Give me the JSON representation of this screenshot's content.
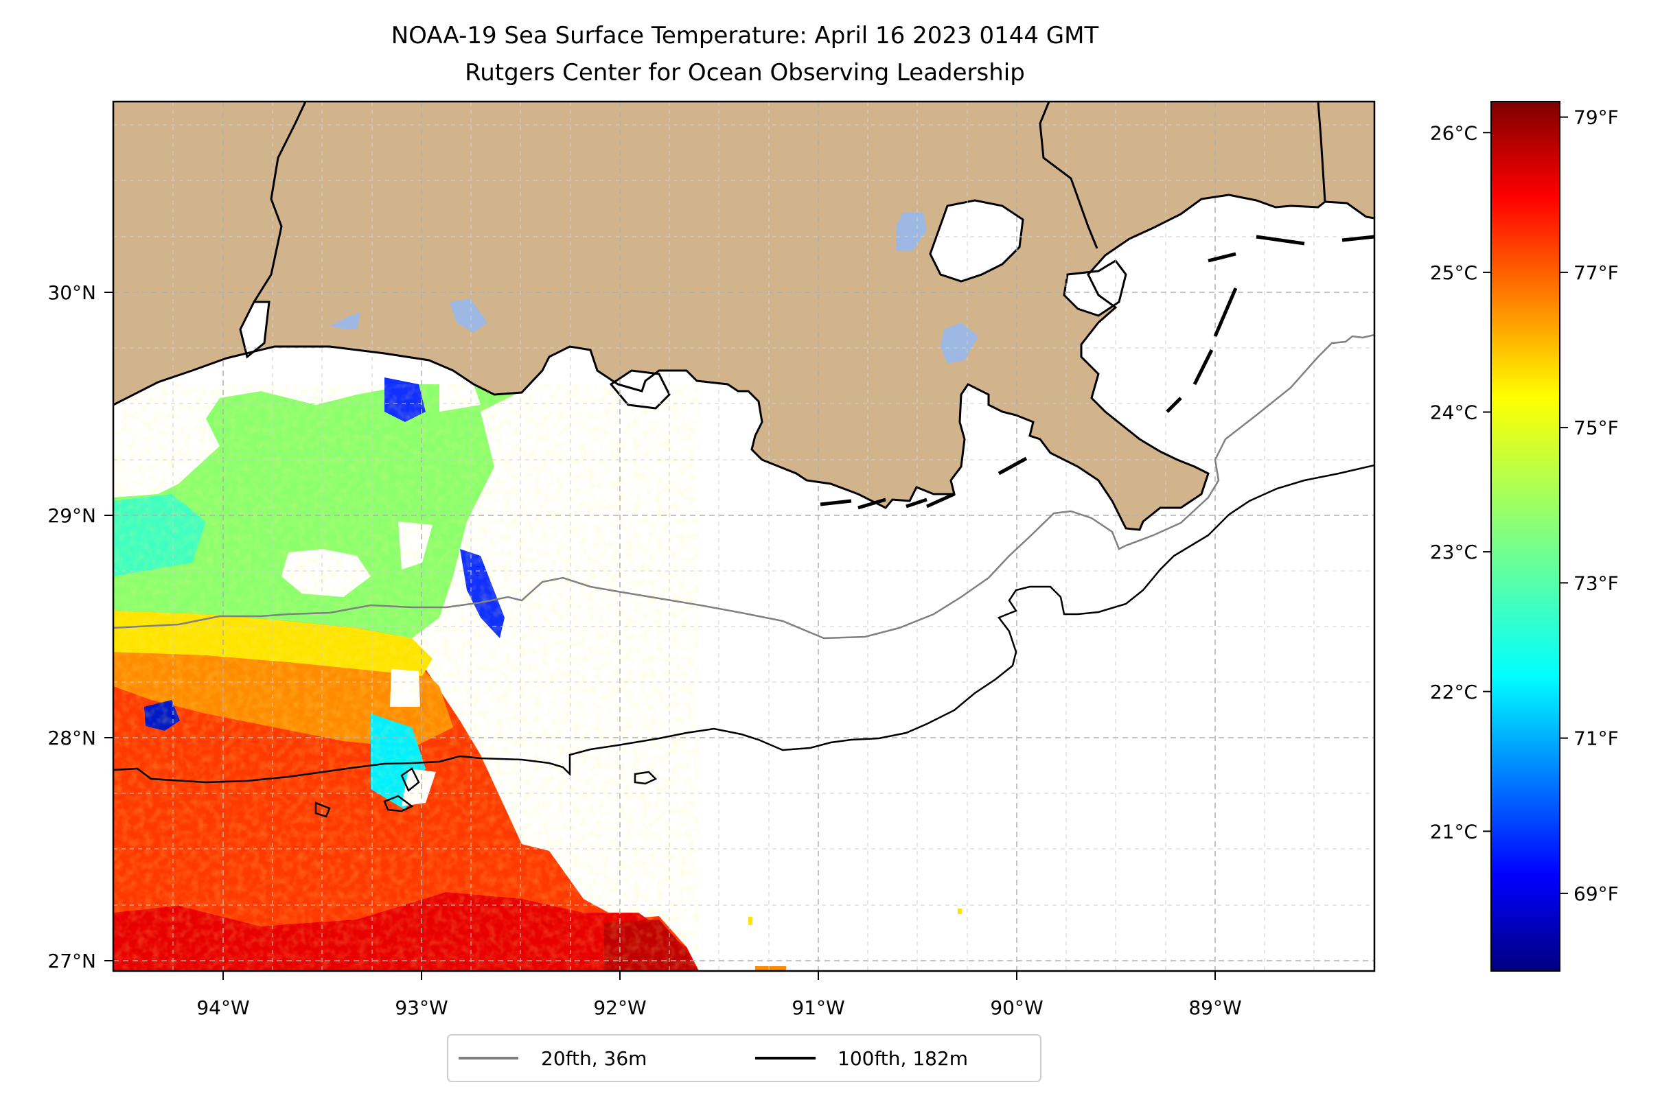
{
  "title": {
    "line1": "NOAA-19 Sea Surface Temperature: April 16 2023 0144 GMT",
    "line2": "Rutgers Center for Ocean Observing Leadership"
  },
  "map": {
    "lon_range": [
      -94.55,
      -88.2
    ],
    "lat_range": [
      26.92,
      30.85
    ],
    "x_ticks": [
      {
        "value": -94,
        "label": "94°W"
      },
      {
        "value": -93,
        "label": "93°W"
      },
      {
        "value": -92,
        "label": "92°W"
      },
      {
        "value": -91,
        "label": "91°W"
      },
      {
        "value": -90,
        "label": "90°W"
      },
      {
        "value": -89,
        "label": "89°W"
      }
    ],
    "y_ticks": [
      {
        "value": 30,
        "label": "30°N"
      },
      {
        "value": 29,
        "label": "29°N"
      },
      {
        "value": 28,
        "label": "28°N"
      },
      {
        "value": 27,
        "label": "27°N"
      }
    ],
    "grid": true,
    "colors": {
      "land": "#d2b48c",
      "water": "#ffffff",
      "inland_lake": "#9db8e3",
      "grid": "#b0b0b0"
    }
  },
  "colorbar": {
    "colormap": "jet",
    "celsius_ticks": [
      "26°C",
      "25°C",
      "24°C",
      "23°C",
      "22°C",
      "21°C"
    ],
    "celsius_values": [
      26,
      25,
      24,
      23,
      22,
      21
    ],
    "fahrenheit_ticks": [
      "79°F",
      "77°F",
      "75°F",
      "73°F",
      "71°F",
      "69°F"
    ],
    "fahrenheit_values": [
      79,
      77,
      75,
      73,
      71,
      69
    ],
    "range_f": [
      68.0,
      79.2
    ]
  },
  "legend": {
    "location": "bottom-center",
    "items": [
      {
        "label": "20fth, 36m",
        "color": "#808080"
      },
      {
        "label": "100fth, 182m",
        "color": "#000000"
      }
    ]
  }
}
